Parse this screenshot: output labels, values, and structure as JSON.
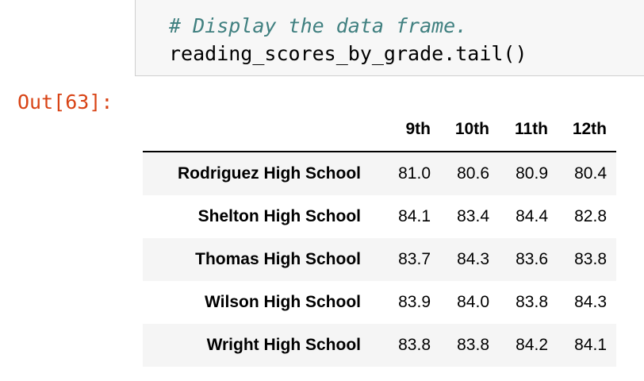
{
  "code": {
    "comment": "# Display the data frame.",
    "statement": "reading_scores_by_grade.tail()"
  },
  "output": {
    "prompt": "Out[63]:",
    "columns": [
      "9th",
      "10th",
      "11th",
      "12th"
    ],
    "rows": [
      {
        "school": "Rodriguez High School",
        "values": [
          "81.0",
          "80.6",
          "80.9",
          "80.4"
        ]
      },
      {
        "school": "Shelton High School",
        "values": [
          "84.1",
          "83.4",
          "84.4",
          "82.8"
        ]
      },
      {
        "school": "Thomas High School",
        "values": [
          "83.7",
          "84.3",
          "83.6",
          "83.8"
        ]
      },
      {
        "school": "Wilson High School",
        "values": [
          "83.9",
          "84.0",
          "83.8",
          "84.3"
        ]
      },
      {
        "school": "Wright High School",
        "values": [
          "83.8",
          "83.8",
          "84.2",
          "84.1"
        ]
      }
    ]
  },
  "colors": {
    "comment": "#408080",
    "out_prompt": "#d84315",
    "cell_background": "#f7f7f7",
    "stripe": "#f5f5f5"
  }
}
